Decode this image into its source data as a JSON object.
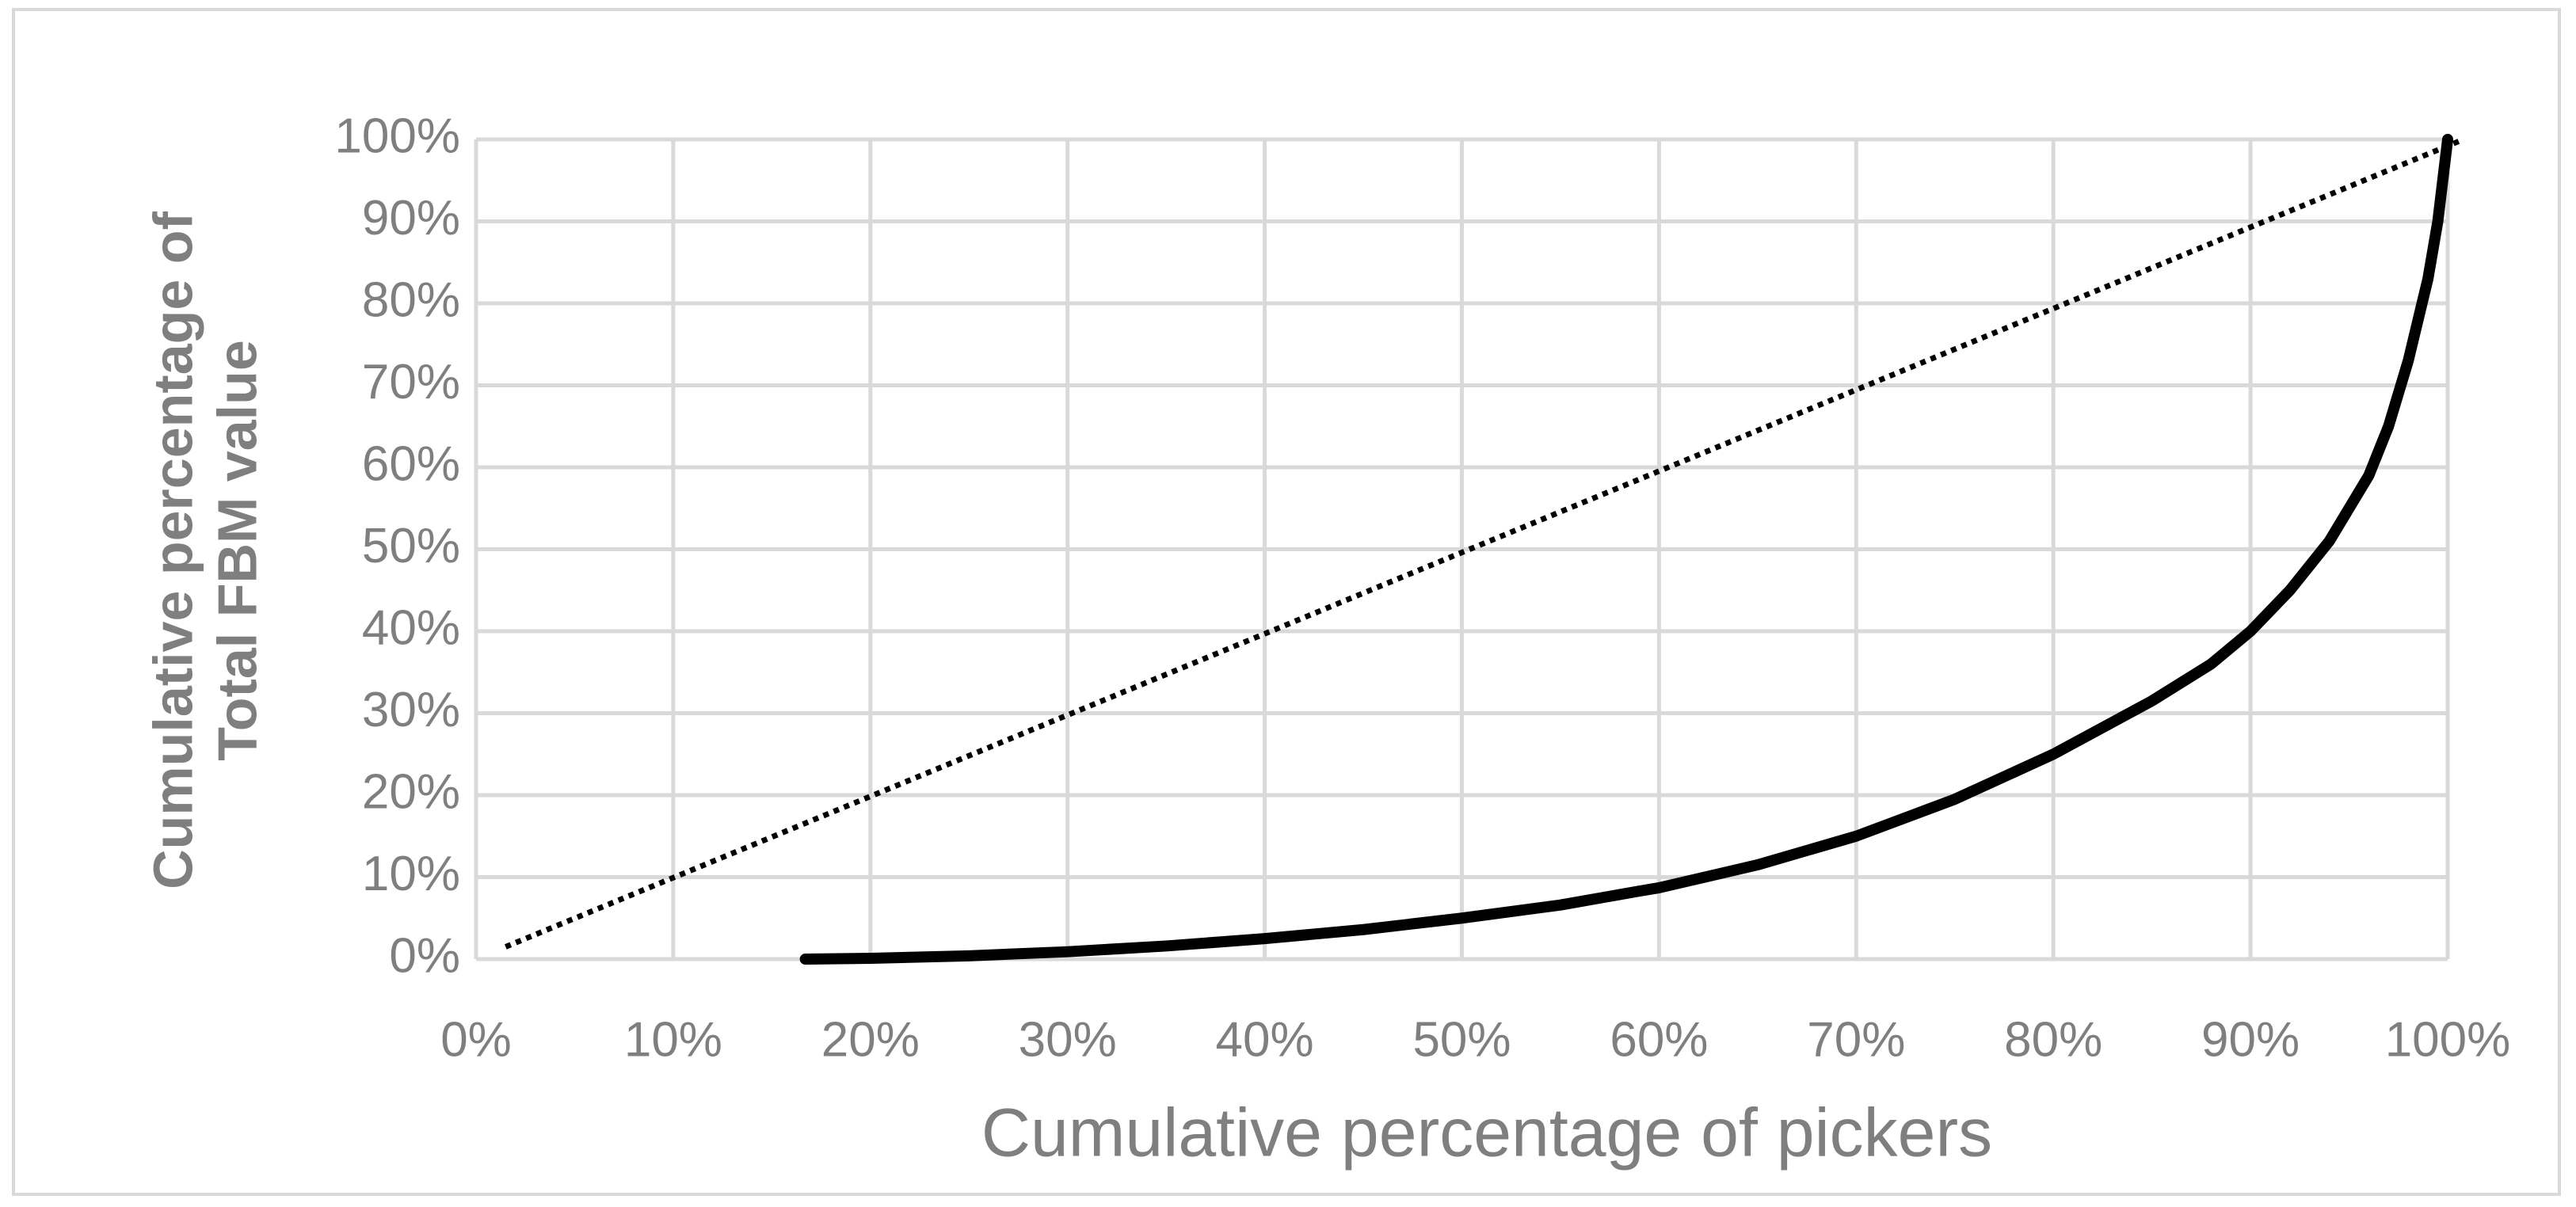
{
  "chart_data": {
    "type": "line",
    "x_label": "Cumulative percentage of pickers",
    "y_label": "Cumulative percentage of Total FBM value",
    "series": [
      {
        "color": "#000000",
        "style": "solid",
        "x": [
          16.7,
          20,
          25,
          30,
          35,
          40,
          45,
          50,
          55,
          59,
          60,
          65,
          70,
          75,
          80,
          85,
          88,
          90,
          92,
          94,
          96,
          97,
          98,
          99,
          99.5,
          100
        ],
        "values": [
          0,
          0.1,
          0.4,
          0.9,
          1.6,
          2.5,
          3.6,
          5,
          6.6,
          8.3,
          8.7,
          11.5,
          15,
          19.5,
          25,
          31.5,
          36,
          40,
          45,
          51,
          59,
          65,
          73,
          83,
          90,
          100
        ]
      },
      {
        "color": "#000000",
        "style": "dotted",
        "x": [
          1.5,
          100.8
        ],
        "values": [
          1.5,
          100
        ]
      }
    ],
    "xlim": [
      0,
      100
    ],
    "ylim": [
      0,
      100
    ],
    "xticks": [
      {
        "value": 0,
        "label": "0%"
      },
      {
        "value": 10,
        "label": "10%"
      },
      {
        "value": 20,
        "label": "20%"
      },
      {
        "value": 30,
        "label": "30%"
      },
      {
        "value": 40,
        "label": "40%"
      },
      {
        "value": 50,
        "label": "50%"
      },
      {
        "value": 60,
        "label": "60%"
      },
      {
        "value": 70,
        "label": "70%"
      },
      {
        "value": 80,
        "label": "80%"
      },
      {
        "value": 90,
        "label": "90%"
      },
      {
        "value": 100,
        "label": "100%"
      }
    ],
    "yticks": [
      {
        "value": 0,
        "label": "0%"
      },
      {
        "value": 10,
        "label": "10%"
      },
      {
        "value": 20,
        "label": "20%"
      },
      {
        "value": 30,
        "label": "30%"
      },
      {
        "value": 40,
        "label": "40%"
      },
      {
        "value": 50,
        "label": "50%"
      },
      {
        "value": 60,
        "label": "60%"
      },
      {
        "value": 70,
        "label": "70%"
      },
      {
        "value": 80,
        "label": "80%"
      },
      {
        "value": 90,
        "label": "90%"
      },
      {
        "value": 100,
        "label": "100%"
      }
    ],
    "grid": true
  }
}
